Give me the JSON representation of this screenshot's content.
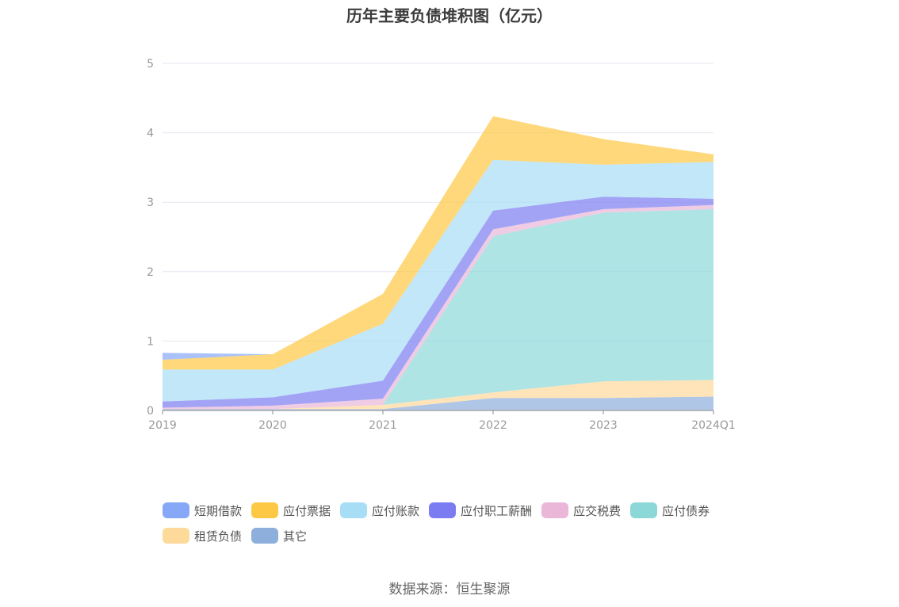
{
  "chart_data": {
    "type": "area",
    "title": "历年主要负债堆积图（亿元）",
    "categories": [
      "2019",
      "2020",
      "2021",
      "2022",
      "2023",
      "2024Q1"
    ],
    "y_ticks": [
      "0",
      "1",
      "2",
      "3",
      "4",
      "5"
    ],
    "ylim": [
      0,
      5
    ],
    "stacked": true,
    "grid": true,
    "legend_position": "bottom",
    "series": [
      {
        "name": "其它",
        "color": "#8eaedb",
        "values": [
          0.02,
          0.02,
          0.02,
          0.18,
          0.18,
          0.2
        ]
      },
      {
        "name": "租赁负债",
        "color": "#fdd99a",
        "values": [
          0.0,
          0.0,
          0.06,
          0.08,
          0.24,
          0.24
        ]
      },
      {
        "name": "应付债券",
        "color": "#8cd8d8",
        "values": [
          0.0,
          0.0,
          0.0,
          2.25,
          2.43,
          2.46
        ]
      },
      {
        "name": "应交税费",
        "color": "#eab7d9",
        "values": [
          0.02,
          0.05,
          0.09,
          0.1,
          0.05,
          0.06
        ]
      },
      {
        "name": "应付职工薪酬",
        "color": "#7c7cf2",
        "values": [
          0.09,
          0.12,
          0.26,
          0.27,
          0.18,
          0.09
        ]
      },
      {
        "name": "应付账款",
        "color": "#a8ddf6",
        "values": [
          0.46,
          0.4,
          0.82,
          0.73,
          0.46,
          0.53
        ]
      },
      {
        "name": "应付票据",
        "color": "#fdc843",
        "values": [
          0.14,
          0.22,
          0.43,
          0.63,
          0.37,
          0.11
        ]
      },
      {
        "name": "短期借款",
        "color": "#86a8f6",
        "values": [
          0.1,
          0.0,
          0.0,
          0.0,
          0.0,
          0.0
        ]
      }
    ]
  },
  "legend_order": [
    "短期借款",
    "应付票据",
    "应付账款",
    "应付职工薪酬",
    "应交税费",
    "应付债券",
    "租赁负债",
    "其它"
  ],
  "source": "数据来源：恒生聚源"
}
